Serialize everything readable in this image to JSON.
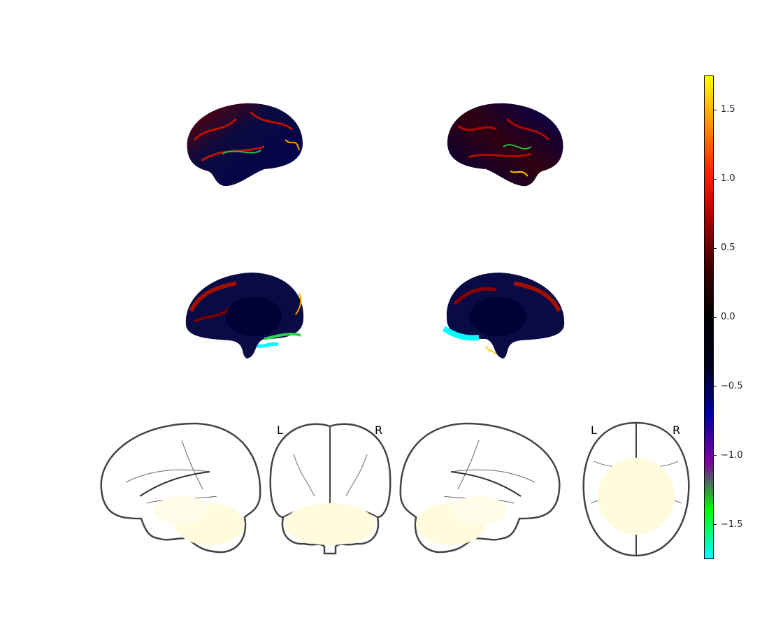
{
  "figure": {
    "views": [
      {
        "name": "left-lateral"
      },
      {
        "name": "right-lateral"
      },
      {
        "name": "left-medial"
      },
      {
        "name": "right-medial"
      }
    ],
    "glass_brain": {
      "coronal_labels": {
        "left": "L",
        "right": "R"
      },
      "axial_labels": {
        "left": "L",
        "right": "R"
      }
    }
  },
  "colorbar": {
    "colormap": "cold_hot",
    "range": [
      -1.75,
      1.75
    ],
    "ticks": [
      {
        "value": 1.5,
        "label": "1.5"
      },
      {
        "value": 1.0,
        "label": "1.0"
      },
      {
        "value": 0.5,
        "label": "0.5"
      },
      {
        "value": 0.0,
        "label": "0.0"
      },
      {
        "value": -0.5,
        "label": "−0.5"
      },
      {
        "value": -1.0,
        "label": "−1.0"
      },
      {
        "value": -1.5,
        "label": "−1.5"
      }
    ],
    "colors": [
      "#00ffff",
      "#00ff00",
      "#7f00a0",
      "#0000a0",
      "#000020",
      "#000000",
      "#3c0000",
      "#a00000",
      "#ff2000",
      "#ff9000",
      "#ffff00"
    ]
  }
}
